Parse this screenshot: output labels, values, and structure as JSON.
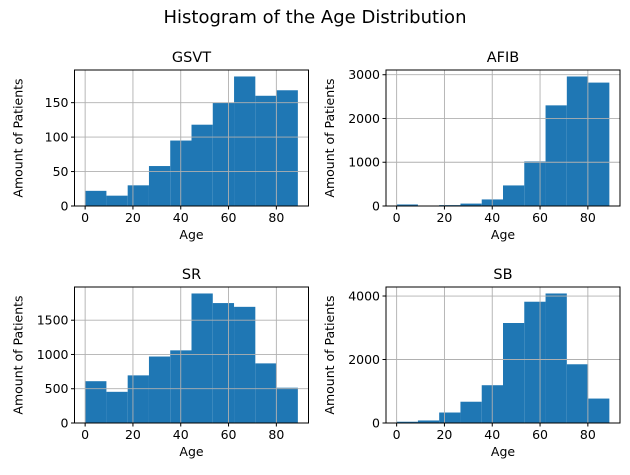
{
  "figure": {
    "suptitle": "Histogram of the Age Distribution",
    "bar_color": "#1f77b4",
    "grid_color": "#b0b0b0",
    "spine_color": "#000000",
    "text_color": "#000000",
    "background_color": "#ffffff"
  },
  "chart_data": [
    {
      "type": "bar",
      "title": "GSVT",
      "xlabel": "Age",
      "ylabel": "Amount of Patients",
      "bin_start": 0,
      "bin_width": 8.9,
      "values": [
        22,
        15,
        30,
        58,
        95,
        118,
        150,
        188,
        160,
        168
      ],
      "xticks": [
        0,
        20,
        40,
        60,
        80
      ],
      "yticks": [
        0,
        50,
        100,
        150
      ],
      "xlim": [
        -4.45,
        93.45
      ],
      "ylim": [
        0,
        197.4
      ],
      "grid": true,
      "legend": null
    },
    {
      "type": "bar",
      "title": "AFIB",
      "xlabel": "Age",
      "ylabel": "Amount of Patients",
      "bin_start": 0,
      "bin_width": 8.9,
      "values": [
        35,
        5,
        20,
        55,
        150,
        470,
        1020,
        2300,
        2960,
        2820
      ],
      "xticks": [
        0,
        20,
        40,
        60,
        80
      ],
      "yticks": [
        0,
        1000,
        2000,
        3000
      ],
      "xlim": [
        -4.45,
        93.45
      ],
      "ylim": [
        0,
        3108
      ],
      "grid": true,
      "legend": null
    },
    {
      "type": "bar",
      "title": "SR",
      "xlabel": "Age",
      "ylabel": "Amount of Patients",
      "bin_start": 0,
      "bin_width": 8.9,
      "values": [
        610,
        455,
        695,
        970,
        1060,
        1890,
        1750,
        1695,
        870,
        515
      ],
      "xticks": [
        0,
        20,
        40,
        60,
        80
      ],
      "yticks": [
        0,
        500,
        1000,
        1500
      ],
      "xlim": [
        -4.45,
        93.45
      ],
      "ylim": [
        0,
        1984.5
      ],
      "grid": true,
      "legend": null
    },
    {
      "type": "bar",
      "title": "SB",
      "xlabel": "Age",
      "ylabel": "Amount of Patients",
      "bin_start": 0,
      "bin_width": 8.9,
      "values": [
        40,
        80,
        330,
        670,
        1190,
        3150,
        3820,
        4080,
        1850,
        770
      ],
      "xticks": [
        0,
        20,
        40,
        60,
        80
      ],
      "yticks": [
        0,
        2000,
        4000
      ],
      "xlim": [
        -4.45,
        93.45
      ],
      "ylim": [
        0,
        4284
      ],
      "grid": true,
      "legend": null
    }
  ]
}
